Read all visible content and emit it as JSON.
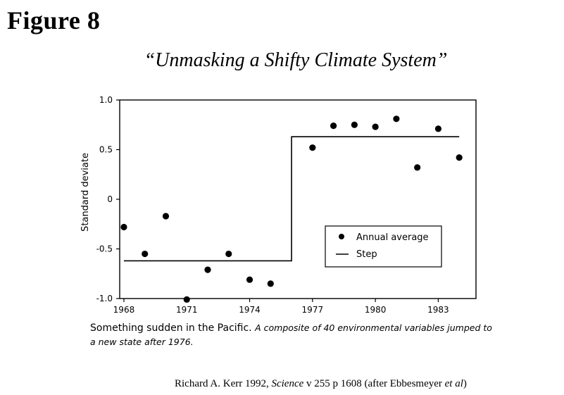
{
  "figure_label": "Figure 8",
  "figure_title": "“Unmasking a Shifty Climate System”",
  "caption": {
    "lead": "Something sudden in the Pacific.",
    "rest": "A composite of 40 environmental variables jumped to a new state after 1976."
  },
  "citation": {
    "before_journal": "Richard A. Kerr 1992, ",
    "journal": "Science",
    "middle": " v 255 p 1608 (after Ebbesmeyer ",
    "et_al": "et al",
    "end": ")"
  },
  "chart_data": {
    "type": "scatter",
    "ylabel": "Standard deviate",
    "xlabel": "",
    "xlim": [
      1967.8,
      1984.8
    ],
    "ylim": [
      -1.0,
      1.0
    ],
    "x_ticks": [
      1968,
      1971,
      1974,
      1977,
      1980,
      1983
    ],
    "y_ticks": [
      {
        "value": 1.0,
        "label": "1.0"
      },
      {
        "value": 0.5,
        "label": "0.5"
      },
      {
        "value": 0.0,
        "label": "0"
      },
      {
        "value": -0.5,
        "label": "-0.5"
      },
      {
        "value": -1.0,
        "label": "-1.0"
      }
    ],
    "legend": {
      "position": "lower-right",
      "items": [
        "Annual average",
        "Step"
      ]
    },
    "series": [
      {
        "name": "Annual average",
        "mark": "point",
        "x": [
          1968,
          1969,
          1970,
          1971,
          1972,
          1973,
          1974,
          1975,
          1977,
          1978,
          1979,
          1980,
          1981,
          1982,
          1983,
          1984
        ],
        "y": [
          -0.28,
          -0.55,
          -0.17,
          -1.01,
          -0.71,
          -0.55,
          -0.81,
          -0.85,
          0.52,
          0.74,
          0.75,
          0.73,
          0.81,
          0.32,
          0.71,
          0.42
        ]
      },
      {
        "name": "Step",
        "mark": "line",
        "x": [
          1968,
          1976,
          1976,
          1984
        ],
        "y": [
          -0.62,
          -0.62,
          0.63,
          0.63
        ]
      }
    ]
  }
}
